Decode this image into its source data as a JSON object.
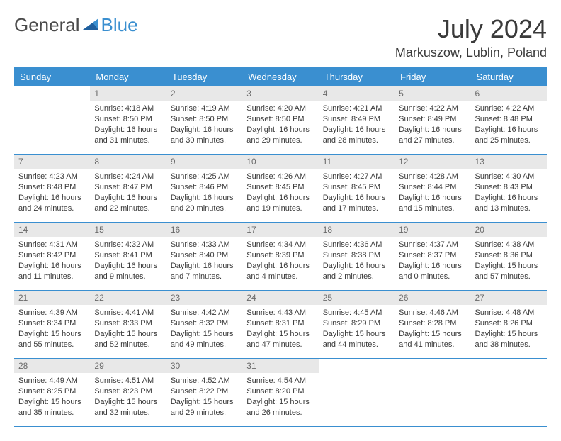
{
  "brand": {
    "part1": "General",
    "part2": "Blue"
  },
  "title": "July 2024",
  "location": "Markuszow, Lublin, Poland",
  "colors": {
    "header_bg": "#3a8fd0",
    "header_text": "#ffffff",
    "daynum_bg": "#e8e8e8",
    "daynum_text": "#6a6a6a",
    "body_text": "#3a3a3a",
    "rule": "#3a8fd0",
    "page_bg": "#ffffff"
  },
  "weekdays": [
    "Sunday",
    "Monday",
    "Tuesday",
    "Wednesday",
    "Thursday",
    "Friday",
    "Saturday"
  ],
  "weeks": [
    [
      {
        "empty": true
      },
      {
        "day": "1",
        "sunrise": "Sunrise: 4:18 AM",
        "sunset": "Sunset: 8:50 PM",
        "daylight1": "Daylight: 16 hours",
        "daylight2": "and 31 minutes."
      },
      {
        "day": "2",
        "sunrise": "Sunrise: 4:19 AM",
        "sunset": "Sunset: 8:50 PM",
        "daylight1": "Daylight: 16 hours",
        "daylight2": "and 30 minutes."
      },
      {
        "day": "3",
        "sunrise": "Sunrise: 4:20 AM",
        "sunset": "Sunset: 8:50 PM",
        "daylight1": "Daylight: 16 hours",
        "daylight2": "and 29 minutes."
      },
      {
        "day": "4",
        "sunrise": "Sunrise: 4:21 AM",
        "sunset": "Sunset: 8:49 PM",
        "daylight1": "Daylight: 16 hours",
        "daylight2": "and 28 minutes."
      },
      {
        "day": "5",
        "sunrise": "Sunrise: 4:22 AM",
        "sunset": "Sunset: 8:49 PM",
        "daylight1": "Daylight: 16 hours",
        "daylight2": "and 27 minutes."
      },
      {
        "day": "6",
        "sunrise": "Sunrise: 4:22 AM",
        "sunset": "Sunset: 8:48 PM",
        "daylight1": "Daylight: 16 hours",
        "daylight2": "and 25 minutes."
      }
    ],
    [
      {
        "day": "7",
        "sunrise": "Sunrise: 4:23 AM",
        "sunset": "Sunset: 8:48 PM",
        "daylight1": "Daylight: 16 hours",
        "daylight2": "and 24 minutes."
      },
      {
        "day": "8",
        "sunrise": "Sunrise: 4:24 AM",
        "sunset": "Sunset: 8:47 PM",
        "daylight1": "Daylight: 16 hours",
        "daylight2": "and 22 minutes."
      },
      {
        "day": "9",
        "sunrise": "Sunrise: 4:25 AM",
        "sunset": "Sunset: 8:46 PM",
        "daylight1": "Daylight: 16 hours",
        "daylight2": "and 20 minutes."
      },
      {
        "day": "10",
        "sunrise": "Sunrise: 4:26 AM",
        "sunset": "Sunset: 8:45 PM",
        "daylight1": "Daylight: 16 hours",
        "daylight2": "and 19 minutes."
      },
      {
        "day": "11",
        "sunrise": "Sunrise: 4:27 AM",
        "sunset": "Sunset: 8:45 PM",
        "daylight1": "Daylight: 16 hours",
        "daylight2": "and 17 minutes."
      },
      {
        "day": "12",
        "sunrise": "Sunrise: 4:28 AM",
        "sunset": "Sunset: 8:44 PM",
        "daylight1": "Daylight: 16 hours",
        "daylight2": "and 15 minutes."
      },
      {
        "day": "13",
        "sunrise": "Sunrise: 4:30 AM",
        "sunset": "Sunset: 8:43 PM",
        "daylight1": "Daylight: 16 hours",
        "daylight2": "and 13 minutes."
      }
    ],
    [
      {
        "day": "14",
        "sunrise": "Sunrise: 4:31 AM",
        "sunset": "Sunset: 8:42 PM",
        "daylight1": "Daylight: 16 hours",
        "daylight2": "and 11 minutes."
      },
      {
        "day": "15",
        "sunrise": "Sunrise: 4:32 AM",
        "sunset": "Sunset: 8:41 PM",
        "daylight1": "Daylight: 16 hours",
        "daylight2": "and 9 minutes."
      },
      {
        "day": "16",
        "sunrise": "Sunrise: 4:33 AM",
        "sunset": "Sunset: 8:40 PM",
        "daylight1": "Daylight: 16 hours",
        "daylight2": "and 7 minutes."
      },
      {
        "day": "17",
        "sunrise": "Sunrise: 4:34 AM",
        "sunset": "Sunset: 8:39 PM",
        "daylight1": "Daylight: 16 hours",
        "daylight2": "and 4 minutes."
      },
      {
        "day": "18",
        "sunrise": "Sunrise: 4:36 AM",
        "sunset": "Sunset: 8:38 PM",
        "daylight1": "Daylight: 16 hours",
        "daylight2": "and 2 minutes."
      },
      {
        "day": "19",
        "sunrise": "Sunrise: 4:37 AM",
        "sunset": "Sunset: 8:37 PM",
        "daylight1": "Daylight: 16 hours",
        "daylight2": "and 0 minutes."
      },
      {
        "day": "20",
        "sunrise": "Sunrise: 4:38 AM",
        "sunset": "Sunset: 8:36 PM",
        "daylight1": "Daylight: 15 hours",
        "daylight2": "and 57 minutes."
      }
    ],
    [
      {
        "day": "21",
        "sunrise": "Sunrise: 4:39 AM",
        "sunset": "Sunset: 8:34 PM",
        "daylight1": "Daylight: 15 hours",
        "daylight2": "and 55 minutes."
      },
      {
        "day": "22",
        "sunrise": "Sunrise: 4:41 AM",
        "sunset": "Sunset: 8:33 PM",
        "daylight1": "Daylight: 15 hours",
        "daylight2": "and 52 minutes."
      },
      {
        "day": "23",
        "sunrise": "Sunrise: 4:42 AM",
        "sunset": "Sunset: 8:32 PM",
        "daylight1": "Daylight: 15 hours",
        "daylight2": "and 49 minutes."
      },
      {
        "day": "24",
        "sunrise": "Sunrise: 4:43 AM",
        "sunset": "Sunset: 8:31 PM",
        "daylight1": "Daylight: 15 hours",
        "daylight2": "and 47 minutes."
      },
      {
        "day": "25",
        "sunrise": "Sunrise: 4:45 AM",
        "sunset": "Sunset: 8:29 PM",
        "daylight1": "Daylight: 15 hours",
        "daylight2": "and 44 minutes."
      },
      {
        "day": "26",
        "sunrise": "Sunrise: 4:46 AM",
        "sunset": "Sunset: 8:28 PM",
        "daylight1": "Daylight: 15 hours",
        "daylight2": "and 41 minutes."
      },
      {
        "day": "27",
        "sunrise": "Sunrise: 4:48 AM",
        "sunset": "Sunset: 8:26 PM",
        "daylight1": "Daylight: 15 hours",
        "daylight2": "and 38 minutes."
      }
    ],
    [
      {
        "day": "28",
        "sunrise": "Sunrise: 4:49 AM",
        "sunset": "Sunset: 8:25 PM",
        "daylight1": "Daylight: 15 hours",
        "daylight2": "and 35 minutes."
      },
      {
        "day": "29",
        "sunrise": "Sunrise: 4:51 AM",
        "sunset": "Sunset: 8:23 PM",
        "daylight1": "Daylight: 15 hours",
        "daylight2": "and 32 minutes."
      },
      {
        "day": "30",
        "sunrise": "Sunrise: 4:52 AM",
        "sunset": "Sunset: 8:22 PM",
        "daylight1": "Daylight: 15 hours",
        "daylight2": "and 29 minutes."
      },
      {
        "day": "31",
        "sunrise": "Sunrise: 4:54 AM",
        "sunset": "Sunset: 8:20 PM",
        "daylight1": "Daylight: 15 hours",
        "daylight2": "and 26 minutes."
      },
      {
        "empty": true
      },
      {
        "empty": true
      },
      {
        "empty": true
      }
    ]
  ]
}
